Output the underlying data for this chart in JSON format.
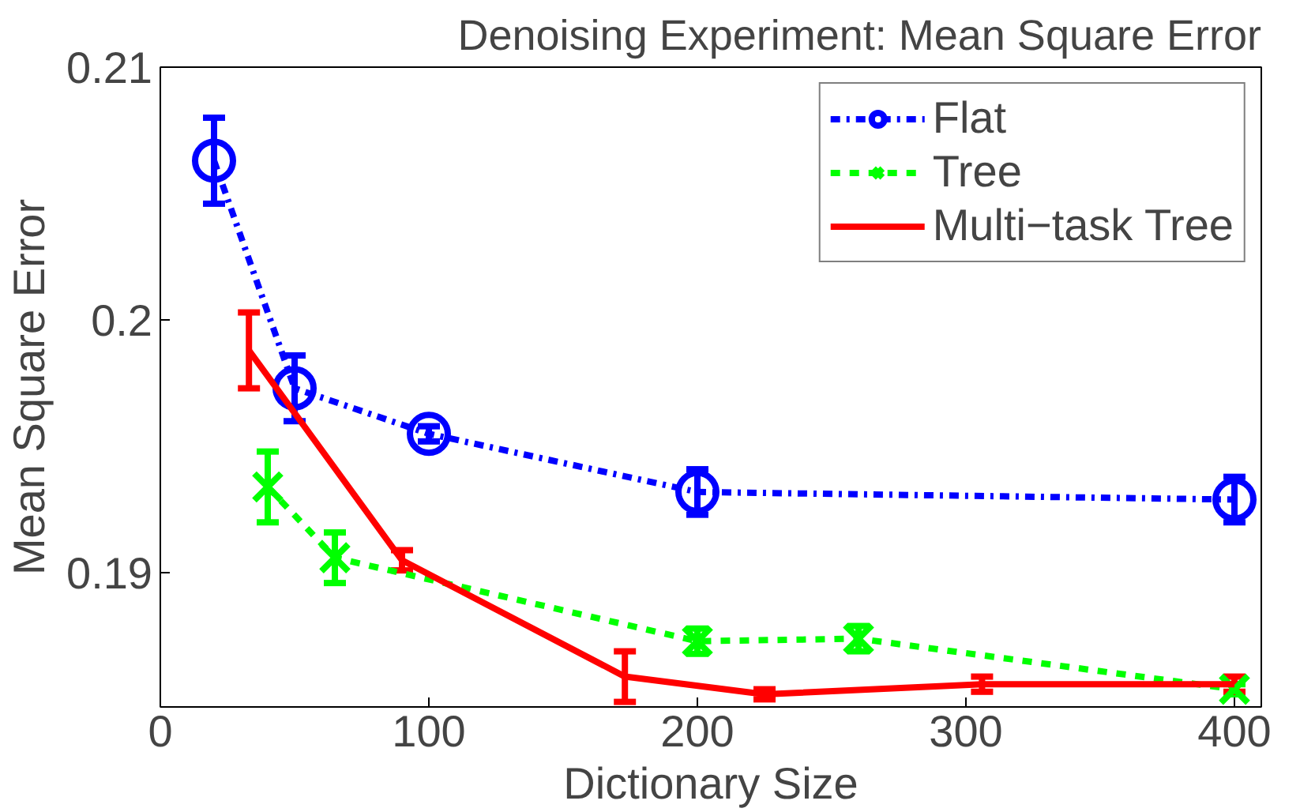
{
  "chart_data": {
    "type": "line",
    "title": "Denoising Experiment: Mean Square Error",
    "xlabel": "Dictionary Size",
    "ylabel": "Mean Square Error",
    "xlim": [
      0,
      410
    ],
    "ylim": [
      0.1847,
      0.21
    ],
    "xticks": [
      0,
      100,
      200,
      300,
      400
    ],
    "yticks": [
      0.19,
      {
        "value": 0.2,
        "label": "0.2"
      },
      0.21
    ],
    "grid": false,
    "legend": "top right",
    "series": [
      {
        "name": "Flat",
        "color": "#0000ff",
        "marker": "circle",
        "line_style": "dashdot",
        "x": [
          20,
          50,
          100,
          200,
          400
        ],
        "values": [
          0.2063,
          0.1973,
          0.1955,
          0.1932,
          0.1929
        ],
        "errors": [
          0.0017,
          0.0013,
          0.0003,
          0.0009,
          0.0009
        ]
      },
      {
        "name": "Tree",
        "color": "#00ff00",
        "marker": "cross",
        "line_style": "dashed",
        "x": [
          40,
          65,
          200,
          260,
          400
        ],
        "values": [
          0.1934,
          0.1906,
          0.1873,
          0.1874,
          0.1854
        ],
        "errors": [
          0.0014,
          0.001,
          0.0005,
          0.0005,
          0.0002
        ]
      },
      {
        "name": "Multi−task Tree",
        "color": "#ff0000",
        "marker": "none",
        "line_style": "solid",
        "x": [
          33,
          90,
          173,
          225,
          306,
          400
        ],
        "values": [
          0.1988,
          0.1905,
          0.1859,
          0.1852,
          0.1856,
          0.1856
        ],
        "errors": [
          0.0015,
          0.0004,
          0.001,
          0.0002,
          0.0003,
          0.0003
        ]
      }
    ]
  }
}
